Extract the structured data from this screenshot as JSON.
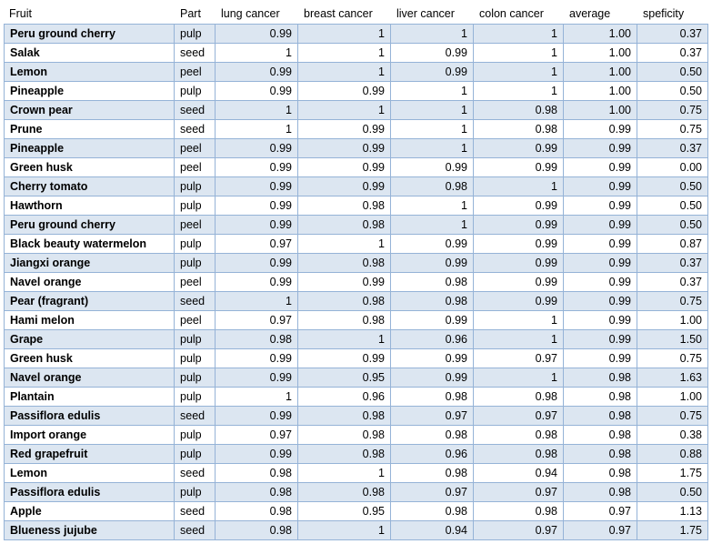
{
  "table": {
    "header": [
      "Fruit",
      "Part",
      "lung cancer",
      "breast cancer",
      "liver cancer",
      "colon cancer",
      "average",
      "speficity"
    ],
    "rows": [
      [
        "Peru ground cherry",
        "pulp",
        "0.99",
        "1",
        "1",
        "1",
        "1.00",
        "0.37"
      ],
      [
        "Salak",
        "seed",
        "1",
        "1",
        "0.99",
        "1",
        "1.00",
        "0.37"
      ],
      [
        "Lemon",
        "peel",
        "0.99",
        "1",
        "0.99",
        "1",
        "1.00",
        "0.50"
      ],
      [
        "Pineapple",
        "pulp",
        "0.99",
        "0.99",
        "1",
        "1",
        "1.00",
        "0.50"
      ],
      [
        "Crown pear",
        "seed",
        "1",
        "1",
        "1",
        "0.98",
        "1.00",
        "0.75"
      ],
      [
        "Prune",
        "seed",
        "1",
        "0.99",
        "1",
        "0.98",
        "0.99",
        "0.75"
      ],
      [
        "Pineapple",
        "peel",
        "0.99",
        "0.99",
        "1",
        "0.99",
        "0.99",
        "0.37"
      ],
      [
        "Green husk",
        "peel",
        "0.99",
        "0.99",
        "0.99",
        "0.99",
        "0.99",
        "0.00"
      ],
      [
        "Cherry tomato",
        "pulp",
        "0.99",
        "0.99",
        "0.98",
        "1",
        "0.99",
        "0.50"
      ],
      [
        "Hawthorn",
        "pulp",
        "0.99",
        "0.98",
        "1",
        "0.99",
        "0.99",
        "0.50"
      ],
      [
        "Peru ground cherry",
        "peel",
        "0.99",
        "0.98",
        "1",
        "0.99",
        "0.99",
        "0.50"
      ],
      [
        "Black beauty watermelon",
        "pulp",
        "0.97",
        "1",
        "0.99",
        "0.99",
        "0.99",
        "0.87"
      ],
      [
        "Jiangxi orange",
        "pulp",
        "0.99",
        "0.98",
        "0.99",
        "0.99",
        "0.99",
        "0.37"
      ],
      [
        "Navel orange",
        "peel",
        "0.99",
        "0.99",
        "0.98",
        "0.99",
        "0.99",
        "0.37"
      ],
      [
        "Pear (fragrant)",
        "seed",
        "1",
        "0.98",
        "0.98",
        "0.99",
        "0.99",
        "0.75"
      ],
      [
        "Hami melon",
        "peel",
        "0.97",
        "0.98",
        "0.99",
        "1",
        "0.99",
        "1.00"
      ],
      [
        "Grape",
        "pulp",
        "0.98",
        "1",
        "0.96",
        "1",
        "0.99",
        "1.50"
      ],
      [
        "Green husk",
        "pulp",
        "0.99",
        "0.99",
        "0.99",
        "0.97",
        "0.99",
        "0.75"
      ],
      [
        "Navel orange",
        "pulp",
        "0.99",
        "0.95",
        "0.99",
        "1",
        "0.98",
        "1.63"
      ],
      [
        "Plantain",
        "pulp",
        "1",
        "0.96",
        "0.98",
        "0.98",
        "0.98",
        "1.00"
      ],
      [
        "Passiflora edulis",
        "seed",
        "0.99",
        "0.98",
        "0.97",
        "0.97",
        "0.98",
        "0.75"
      ],
      [
        "Import orange",
        "pulp",
        "0.97",
        "0.98",
        "0.98",
        "0.98",
        "0.98",
        "0.38"
      ],
      [
        "Red grapefruit",
        "pulp",
        "0.99",
        "0.98",
        "0.96",
        "0.98",
        "0.98",
        "0.88"
      ],
      [
        "Lemon",
        "seed",
        "0.98",
        "1",
        "0.98",
        "0.94",
        "0.98",
        "1.75"
      ],
      [
        "Passiflora edulis",
        "pulp",
        "0.98",
        "0.98",
        "0.97",
        "0.97",
        "0.98",
        "0.50"
      ],
      [
        "Apple",
        "seed",
        "0.98",
        "0.95",
        "0.98",
        "0.98",
        "0.97",
        "1.13"
      ],
      [
        "Blueness jujube",
        "seed",
        "0.98",
        "1",
        "0.94",
        "0.97",
        "0.97",
        "1.75"
      ]
    ]
  }
}
